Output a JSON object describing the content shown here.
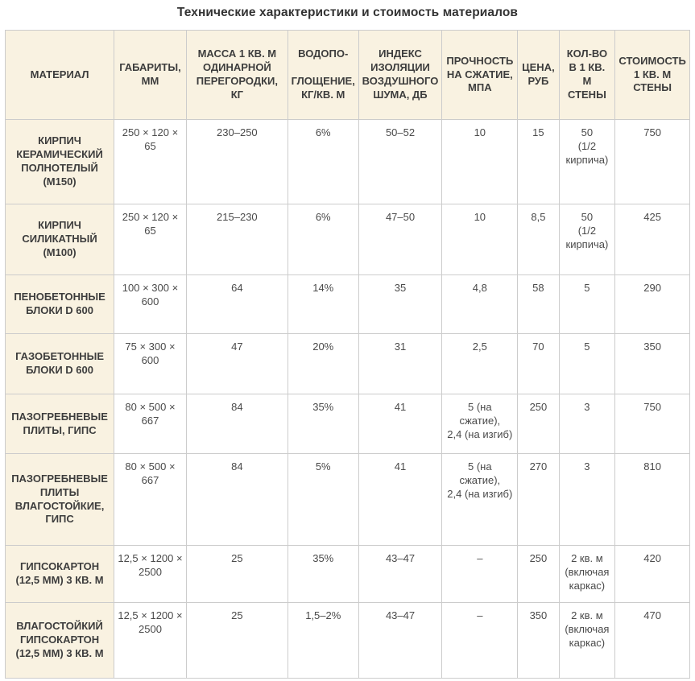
{
  "title": "Технические характеристики и стоимость материалов",
  "colors": {
    "header_background": "#f9f2e1",
    "border": "#cccccc",
    "title_text": "#333333",
    "cell_text": "#4a4a4a"
  },
  "table": {
    "columns": [
      {
        "id": "material",
        "label": "МАТЕРИАЛ"
      },
      {
        "id": "dims",
        "label": "ГАБАРИТЫ,\nММ"
      },
      {
        "id": "mass",
        "label": "МАССА 1 КВ. М\nОДИНАРНОЙ\nПЕРЕГОРОДКИ,\nКГ"
      },
      {
        "id": "water",
        "label": "ВОДОПО-\n\nГЛОЩЕНИЕ,\nКГ/КВ. М"
      },
      {
        "id": "noise",
        "label": "ИНДЕКС\nИЗОЛЯЦИИ\nВОЗДУШНОГО\nШУМА, ДБ"
      },
      {
        "id": "strength",
        "label": "ПРОЧНОСТЬ\nНА СЖАТИЕ,\nМПА"
      },
      {
        "id": "price",
        "label": "ЦЕНА,\nРУБ"
      },
      {
        "id": "qty",
        "label": "КОЛ-ВО\nВ 1 КВ.\nМ\nСТЕНЫ"
      },
      {
        "id": "cost",
        "label": "СТОИМОСТЬ\n1 КВ. М\nСТЕНЫ"
      }
    ],
    "rows": [
      {
        "material": "КИРПИЧ\nКЕРАМИЧЕСКИЙ\nПОЛНОТЕЛЫЙ\n(М150)",
        "dims": "250 × 120 ×\n65",
        "mass": "230–250",
        "water": "6%",
        "noise": "50–52",
        "strength": "10",
        "price": "15",
        "qty": "50\n(1/2\nкирпича)",
        "cost": "750"
      },
      {
        "material": "КИРПИЧ\nСИЛИКАТНЫЙ\n(М100)",
        "dims": "250 × 120 ×\n65",
        "mass": "215–230",
        "water": "6%",
        "noise": "47–50",
        "strength": "10",
        "price": "8,5",
        "qty": "50\n(1/2\nкирпича)",
        "cost": "425"
      },
      {
        "material": "ПЕНОБЕТОННЫЕ\nБЛОКИ D 600",
        "dims": "100 × 300 ×\n600",
        "mass": "64",
        "water": "14%",
        "noise": "35",
        "strength": "4,8",
        "price": "58",
        "qty": "5",
        "cost": "290"
      },
      {
        "material": "ГАЗОБЕТОННЫЕ\nБЛОКИ D 600",
        "dims": "75 × 300 ×\n600",
        "mass": "47",
        "water": "20%",
        "noise": "31",
        "strength": "2,5",
        "price": "70",
        "qty": "5",
        "cost": "350"
      },
      {
        "material": "ПАЗОГРЕБНЕВЫЕ\nПЛИТЫ, ГИПС",
        "dims": "80  × 500 ×\n667",
        "mass": "84",
        "water": "35%",
        "noise": "41",
        "strength": "5 (на\nсжатие),\n2,4 (на изгиб)",
        "price": "250",
        "qty": "3",
        "cost": "750"
      },
      {
        "material": "ПАЗОГРЕБНЕВЫЕ\nПЛИТЫ\nВЛАГОСТОЙКИЕ,\nГИПС",
        "dims": "80  × 500 ×\n667",
        "mass": "84",
        "water": "5%",
        "noise": "41",
        "strength": "5 (на\nсжатие),\n2,4 (на изгиб)",
        "price": "270",
        "qty": "3",
        "cost": "810"
      },
      {
        "material": "ГИПСОКАРТОН\n(12,5 ММ) 3 КВ. М",
        "dims": "12,5 × 1200 ×\n2500",
        "mass": "25",
        "water": "35%",
        "noise": "43–47",
        "strength": "–",
        "price": "250",
        "qty": "2 кв. м\n(включая\nкаркас)",
        "cost": "420"
      },
      {
        "material": "ВЛАГОСТОЙКИЙ\nГИПСОКАРТОН\n(12,5 ММ) 3 КВ. М",
        "dims": "12,5 × 1200 ×\n2500",
        "mass": "25",
        "water": "1,5–2%",
        "noise": "43–47",
        "strength": "–",
        "price": "350",
        "qty": "2 кв. м\n(включая\nкаркас)",
        "cost": "470"
      }
    ]
  }
}
